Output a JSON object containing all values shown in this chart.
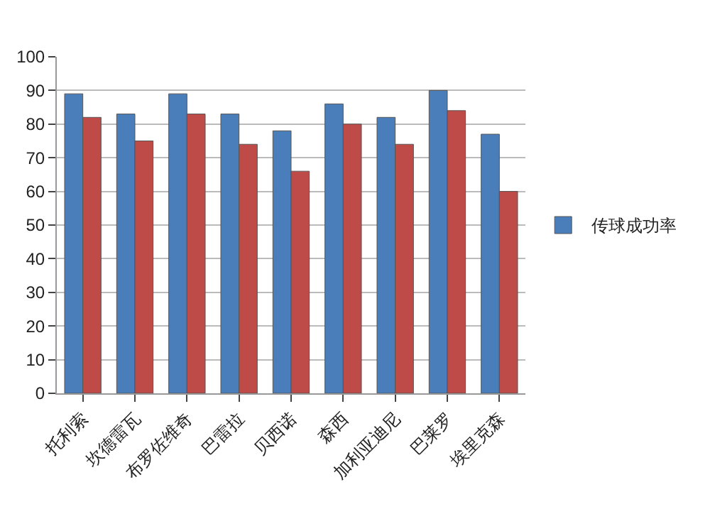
{
  "chart_data": {
    "type": "bar",
    "categories": [
      "托利索",
      "坎德雷瓦",
      "布罗佐维奇",
      "巴雷拉",
      "贝西诺",
      "森西",
      "加利亚迪尼",
      "巴莱罗",
      "埃里克森"
    ],
    "series": [
      {
        "name": "传球成功率",
        "color": "#4a7ebb",
        "values": [
          89,
          83,
          89,
          83,
          78,
          86,
          82,
          90,
          77
        ]
      },
      {
        "color": "#be4b48",
        "values": [
          82,
          75,
          83,
          74,
          66,
          80,
          74,
          84,
          60
        ]
      }
    ],
    "ylim": [
      0,
      100
    ],
    "yticks": [
      0,
      10,
      20,
      30,
      40,
      50,
      60,
      70,
      80,
      90,
      100
    ],
    "grid": "y",
    "legend": "right"
  }
}
